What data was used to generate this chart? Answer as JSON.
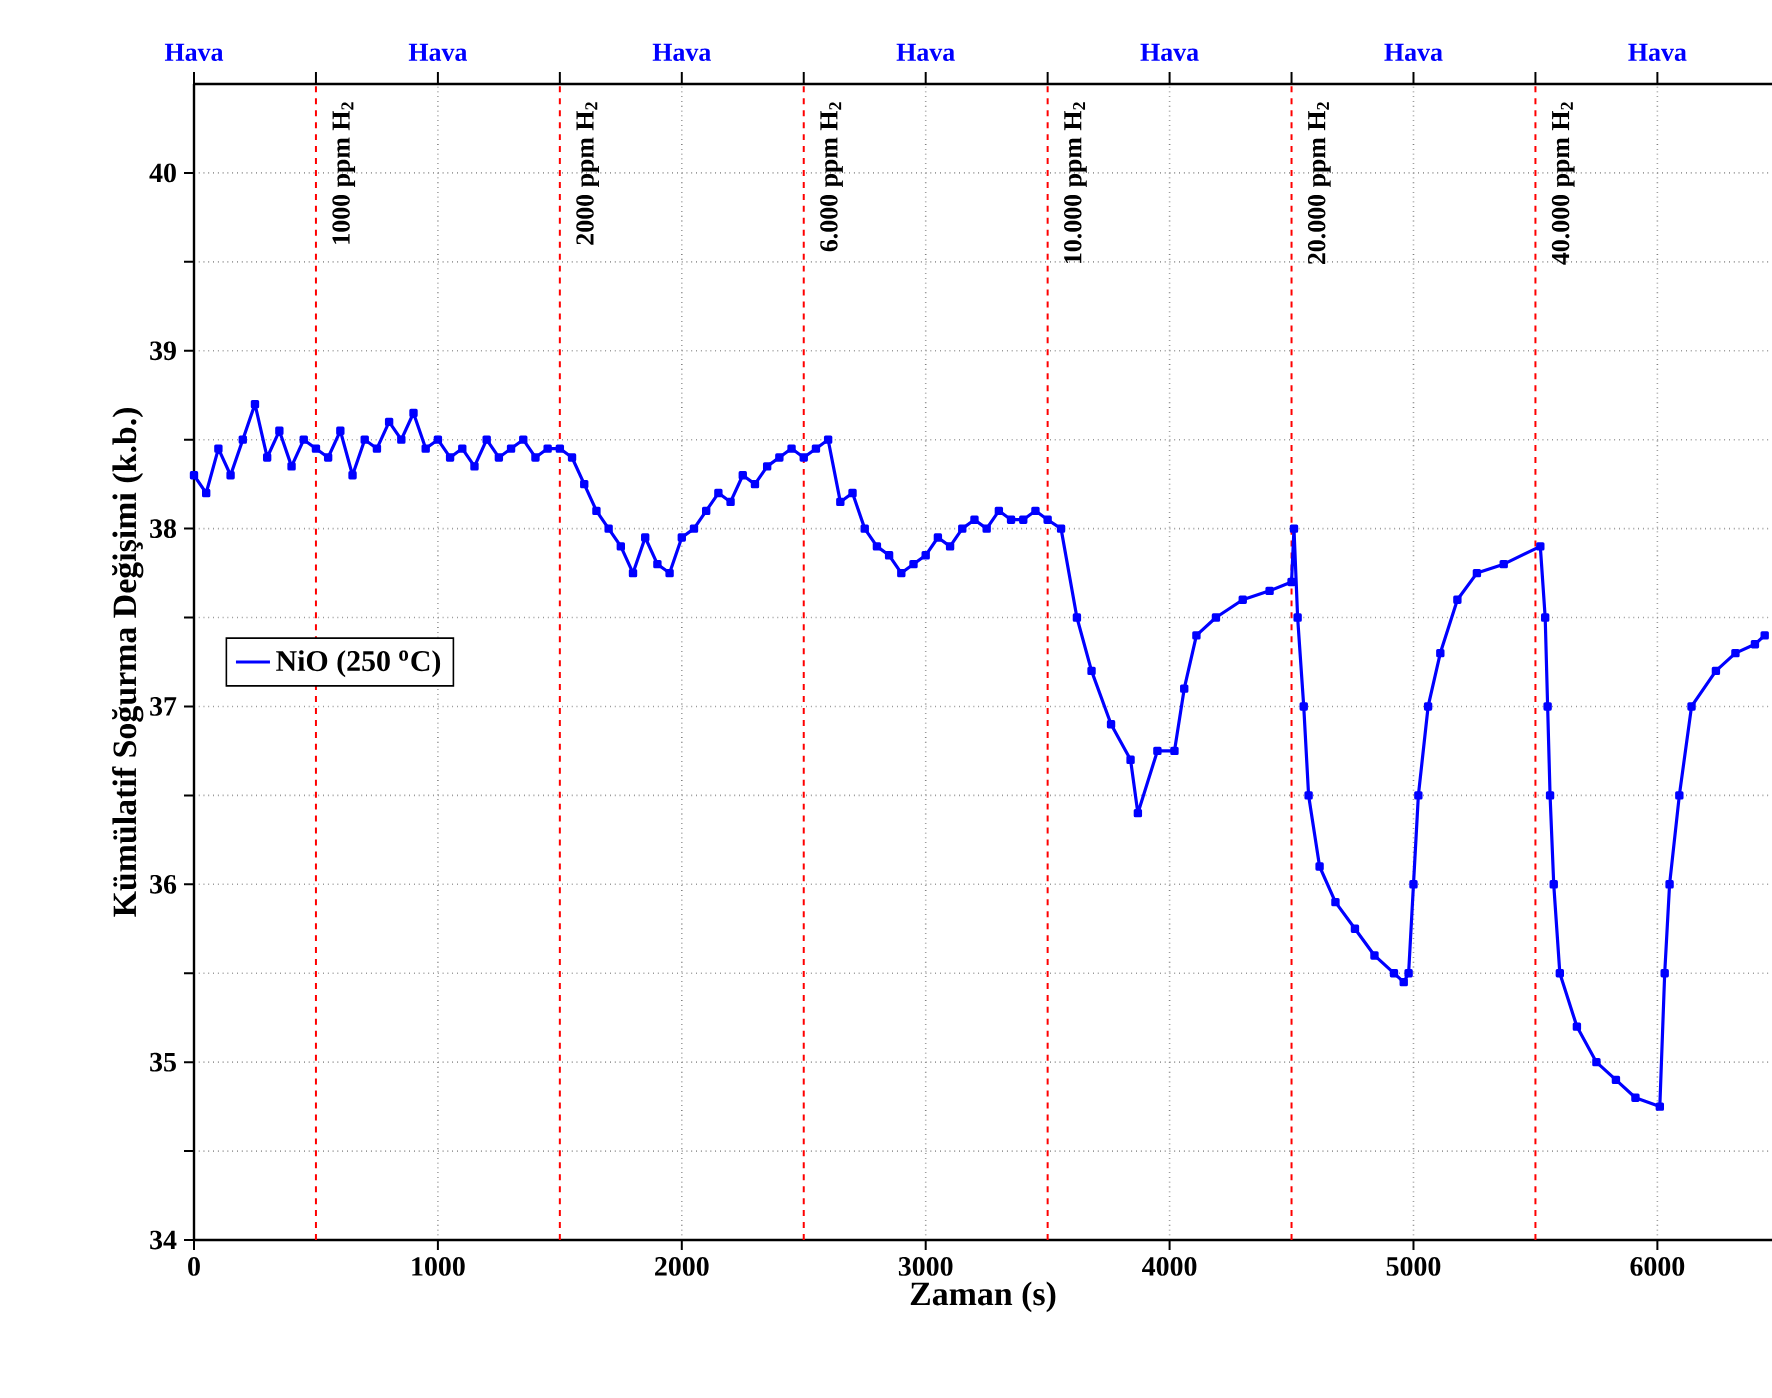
{
  "chart_data": {
    "type": "line",
    "xlabel": "Zaman (s)",
    "ylabel": "Kümülatif Soğurma Değişimi (k.b.)",
    "xlim": [
      0,
      6470
    ],
    "ylim": [
      34,
      40.5
    ],
    "xticks": [
      0,
      1000,
      2000,
      3000,
      4000,
      5000,
      6000
    ],
    "yticks": [
      34,
      {
        "value": 34.5,
        "label": null
      },
      35,
      {
        "value": 35.5,
        "label": null
      },
      36,
      {
        "value": 36.5,
        "label": null
      },
      37,
      {
        "value": 37.5,
        "label": null
      },
      38,
      {
        "value": 38.5,
        "label": null
      },
      39,
      {
        "value": 39.5,
        "label": null
      },
      40
    ],
    "annotations": [
      "Hava",
      "Hava",
      "Hava",
      "Hava",
      "Hava",
      "Hava",
      "Hava"
    ],
    "grid": true,
    "legend": "left",
    "marker": "square",
    "line_style": "solid",
    "series": [
      {
        "name": "NiO (250 $^{o}$C)",
        "color": "#0000ff",
        "x": [
          0,
          50,
          100,
          150,
          200,
          250,
          300,
          350,
          400,
          450,
          500,
          550,
          600,
          650,
          700,
          750,
          800,
          850,
          900,
          950,
          1000,
          1050,
          1100,
          1150,
          1200,
          1250,
          1300,
          1350,
          1400,
          1450,
          1500,
          1550,
          1600,
          1650,
          1700,
          1750,
          1800,
          1850,
          1900,
          1950,
          2000,
          2050,
          2100,
          2150,
          2200,
          2250,
          2300,
          2350,
          2400,
          2450,
          2500,
          2550,
          2600,
          2650,
          2700,
          2750,
          2800,
          2850,
          2900,
          2950,
          3000,
          3050,
          3100,
          3150,
          3200,
          3250,
          3300,
          3350,
          3400,
          3450,
          3500,
          3555,
          3620,
          3680,
          3760,
          3840,
          3870,
          3950,
          4020,
          4060,
          4110,
          4190,
          4300,
          4410,
          4500,
          4510,
          4525,
          4550,
          4570,
          4615,
          4680,
          4760,
          4840,
          4920,
          4960,
          4980,
          5000,
          5020,
          5060,
          5110,
          5180,
          5260,
          5370,
          5520,
          5540,
          5550,
          5560,
          5575,
          5600,
          5670,
          5750,
          5830,
          5910,
          6010,
          6030,
          6050,
          6090,
          6140,
          6240,
          6320,
          6400,
          6440
        ],
        "values": [
          38.3,
          38.2,
          38.45,
          38.3,
          38.5,
          38.7,
          38.4,
          38.55,
          38.35,
          38.5,
          38.45,
          38.4,
          38.55,
          38.3,
          38.5,
          38.45,
          38.6,
          38.5,
          38.65,
          38.45,
          38.5,
          38.4,
          38.45,
          38.35,
          38.5,
          38.4,
          38.45,
          38.5,
          38.4,
          38.45,
          38.45,
          38.4,
          38.25,
          38.1,
          38.0,
          37.9,
          37.75,
          37.95,
          37.8,
          37.75,
          37.95,
          38.0,
          38.1,
          38.2,
          38.15,
          38.3,
          38.25,
          38.35,
          38.4,
          38.45,
          38.4,
          38.45,
          38.5,
          38.15,
          38.2,
          38.0,
          37.9,
          37.85,
          37.75,
          37.8,
          37.85,
          37.95,
          37.9,
          38.0,
          38.05,
          38.0,
          38.1,
          38.05,
          38.05,
          38.1,
          38.05,
          38.0,
          37.5,
          37.2,
          36.9,
          36.7,
          36.4,
          36.75,
          36.75,
          37.1,
          37.4,
          37.5,
          37.6,
          37.65,
          37.7,
          38.0,
          37.5,
          37.0,
          36.5,
          36.1,
          35.9,
          35.75,
          35.6,
          35.5,
          35.45,
          35.5,
          36.0,
          36.5,
          37.0,
          37.3,
          37.6,
          37.75,
          37.8,
          37.9,
          37.5,
          37.0,
          36.5,
          36.0,
          35.5,
          35.2,
          35.0,
          34.9,
          34.8,
          34.75,
          35.5,
          36.0,
          36.5,
          37.0,
          37.2,
          37.3,
          37.35,
          37.4
        ]
      }
    ],
    "ref_lines": [
      {
        "axis": "x",
        "value": 500,
        "label": "1000 ppm H$_{2}$",
        "color": "#ff0000",
        "line_style": "dashed"
      },
      {
        "axis": "x",
        "value": 1500,
        "label": "2000 ppm H$_{2}$",
        "color": "#ff0000",
        "line_style": "dashed"
      },
      {
        "axis": "x",
        "value": 2500,
        "label": "6.000 ppm H$_{2}$",
        "color": "#ff0000",
        "line_style": "dashed"
      },
      {
        "axis": "x",
        "value": 3500,
        "label": "10.000 ppm H$_{2}$",
        "color": "#ff0000",
        "line_style": "dashed"
      },
      {
        "axis": "x",
        "value": 4500,
        "label": "20.000 ppm H$_{2}$",
        "color": "#ff0000",
        "line_style": "dashed"
      },
      {
        "axis": "x",
        "value": 5500,
        "label": "40.000 ppm H$_{2}$",
        "color": "#ff0000",
        "line_style": "dashed"
      }
    ]
  }
}
